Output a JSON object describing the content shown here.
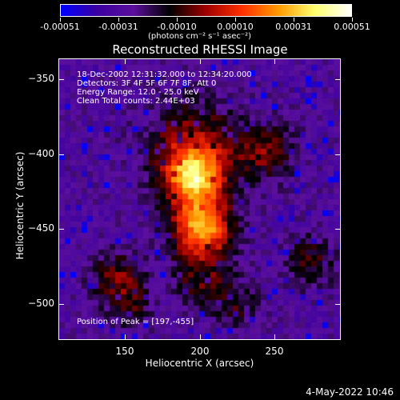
{
  "colorbar": {
    "tick_labels": [
      "-0.00051",
      "-0.00031",
      "-0.00010",
      "0.00010",
      "0.00031",
      "0.00051"
    ],
    "units": "(photons cm⁻² s⁻¹ asec⁻²)",
    "colors": [
      "#0000ff",
      "#3a00a0",
      "#5b0f9c",
      "#000000",
      "#a00000",
      "#ff3000",
      "#ff9a00",
      "#ffff70",
      "#ffffff"
    ]
  },
  "title": "Reconstructed RHESSI Image",
  "annotations": {
    "time_range": "18-Dec-2002 12:31:32.000 to 12:34:20.000",
    "detectors": "Detectors: 3F 4F 5F 6F 7F 8F, Att 0",
    "energy": "Energy Range: 12.0 - 25.0 keV",
    "clean": "Clean    Total counts: 2.44E+03",
    "peak": "Position of Peak = [197,-455]"
  },
  "axes": {
    "x_label": "Heliocentric X (arcsec)",
    "y_label": "Heliocentric Y (arcsec)",
    "x_ticks": [
      "150",
      "200",
      "250"
    ],
    "y_ticks": [
      "-350",
      "-400",
      "-450",
      "-500"
    ],
    "x_range": [
      106,
      294
    ],
    "y_range": [
      -524,
      -336
    ]
  },
  "datestamp": "4-May-2022 10:46"
}
